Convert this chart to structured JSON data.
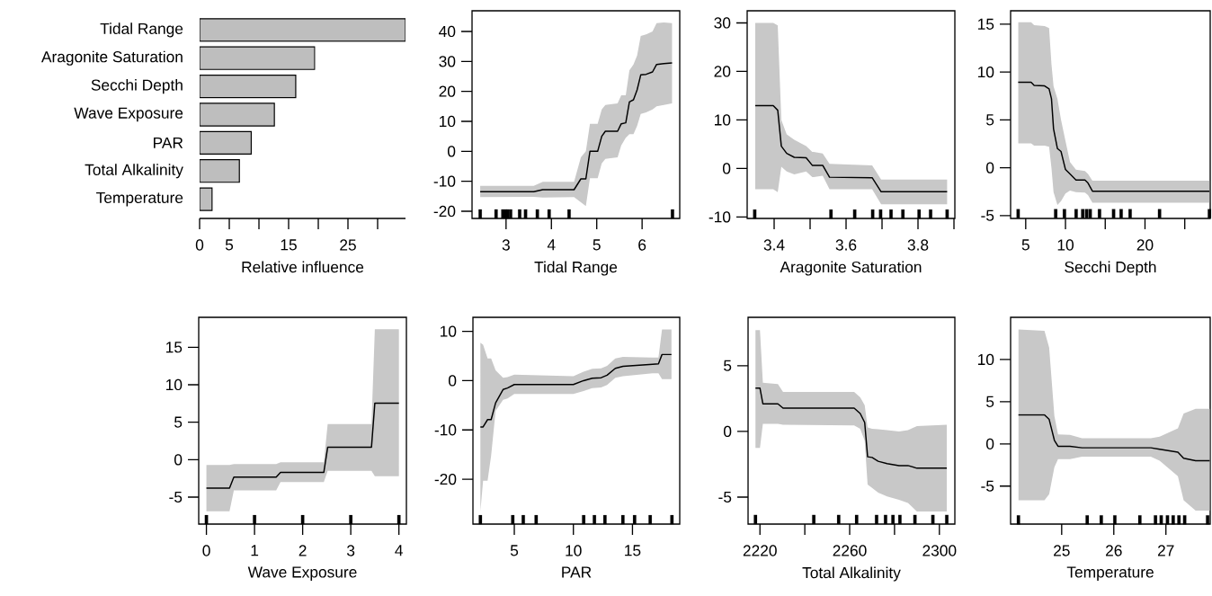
{
  "chart_data": [
    {
      "type": "bar",
      "orientation": "horizontal",
      "categories": [
        "Tidal Range",
        "Aragonite Saturation",
        "Secchi Depth",
        "Wave Exposure",
        "PAR",
        "Total Alkalinity",
        "Temperature"
      ],
      "values": [
        34.7,
        19.4,
        16.2,
        12.6,
        8.7,
        6.7,
        2.1
      ],
      "color": "#bebebe",
      "xlabel": "Relative influence",
      "xlim": [
        0,
        34.7
      ],
      "xticks": [
        0,
        5,
        {
          "value": 10,
          "label": null
        },
        15,
        {
          "value": 20,
          "label": null
        },
        25,
        {
          "value": 30,
          "label": null
        }
      ]
    },
    {
      "type": "line",
      "xlabel": "Tidal Range",
      "xlim": [
        2.25,
        6.83
      ],
      "ylim": [
        -22.4,
        46.9
      ],
      "xticks": [
        3,
        4,
        5,
        6
      ],
      "yticks": [
        -20,
        -10,
        0,
        10,
        20,
        30,
        40
      ],
      "series": [
        {
          "type": "line",
          "color": "#000000",
          "x": [
            2.43,
            3.61,
            3.81,
            4.5,
            4.65,
            4.76,
            4.85,
            5.02,
            5.11,
            5.19,
            5.46,
            5.54,
            5.64,
            5.72,
            5.81,
            5.89,
            5.97,
            6.09,
            6.23,
            6.32,
            6.48,
            6.66
          ],
          "values": [
            -13.5,
            -13.5,
            -12.8,
            -12.8,
            -9.2,
            -9.2,
            0,
            0,
            5,
            6.7,
            6.7,
            9.2,
            9.5,
            16.5,
            17.2,
            20.5,
            25.5,
            25.7,
            26.5,
            29,
            29.3,
            29.5
          ],
          "upper": [
            -11.5,
            -11.5,
            -10.2,
            -10.2,
            -2,
            0,
            9.2,
            9.2,
            14,
            15.5,
            16,
            18.7,
            18.7,
            27,
            29,
            32,
            38.5,
            39,
            40,
            42.8,
            43,
            42.8
          ],
          "lower": [
            -15.3,
            -15.2,
            -15.4,
            -15.3,
            -17,
            -18.3,
            -9,
            -9,
            -4,
            -2.5,
            -2,
            2,
            4.5,
            5.7,
            5.7,
            8.5,
            12.5,
            13,
            14,
            15,
            15.5,
            16
          ]
        },
        {
          "type": "scatter",
          "color": "#000000",
          "x": [
            2.43,
            2.78,
            2.93,
            2.99,
            3.03,
            3.1,
            3.3,
            3.43,
            3.69,
            3.95,
            4.39,
            6.67
          ],
          "values": [
            -20.9,
            -20.9,
            -20.9,
            -20.9,
            -20.9,
            -20.9,
            -20.9,
            -20.9,
            -20.9,
            -20.9,
            -20.9,
            -20.9
          ]
        }
      ]
    },
    {
      "type": "line",
      "xlabel": "Aragonite Saturation",
      "xlim": [
        3.325,
        3.9025
      ],
      "ylim": [
        -10.3,
        32.5
      ],
      "xticks": [
        3.4,
        {
          "value": 3.5,
          "label": null
        },
        3.6,
        {
          "value": 3.7,
          "label": null
        },
        3.8,
        {
          "value": 3.9,
          "label": null
        }
      ],
      "yticks": [
        -10,
        0,
        10,
        20,
        30
      ],
      "series": [
        {
          "type": "line",
          "color": "#000000",
          "x": [
            3.3475,
            3.3975,
            3.41,
            3.42,
            3.435,
            3.456,
            3.489,
            3.506,
            3.51,
            3.535,
            3.554,
            3.6725,
            3.6975,
            3.881
          ],
          "values": [
            12.95,
            12.95,
            12,
            4.6,
            3.1,
            2.3,
            2.2,
            0.65,
            0.65,
            0.65,
            -1.8,
            -1.9,
            -4.8,
            -4.8
          ],
          "upper": [
            30,
            30,
            29.5,
            10,
            7,
            5.9,
            4.6,
            3.4,
            3.4,
            3.1,
            0.95,
            0.65,
            -2.3,
            -2.3
          ],
          "lower": [
            -4.3,
            -4.3,
            -4.9,
            0.35,
            -0.6,
            -1.2,
            -0.6,
            -1.8,
            -1.8,
            -1.5,
            -4.3,
            -4.3,
            -7.4,
            -7.4
          ]
        },
        {
          "type": "scatter",
          "color": "#000000",
          "x": [
            3.346,
            3.558,
            3.624,
            3.674,
            3.696,
            3.725,
            3.758,
            3.803,
            3.835,
            3.881
          ],
          "values": [
            -9.4,
            -9.4,
            -9.4,
            -9.4,
            -9.4,
            -9.4,
            -9.4,
            -9.4,
            -9.4,
            -9.4
          ]
        }
      ]
    },
    {
      "type": "line",
      "xlabel": "Secchi Depth",
      "xlim": [
        3.1,
        28.2
      ],
      "ylim": [
        -5.3,
        16.4
      ],
      "xticks": [
        5,
        10,
        {
          "value": 15,
          "label": null
        },
        20,
        {
          "value": 25,
          "label": null
        }
      ],
      "yticks": [
        -5,
        0,
        5,
        10,
        15
      ],
      "series": [
        {
          "type": "line",
          "color": "#000000",
          "x": [
            4.05,
            5.68,
            6.06,
            7.38,
            7.94,
            8.24,
            8.5,
            8.99,
            9.44,
            10.0,
            10.57,
            11.32,
            12.45,
            12.83,
            13.39,
            28.1
          ],
          "values": [
            8.93,
            8.93,
            8.6,
            8.55,
            8.24,
            7.2,
            4.06,
            2.0,
            1.7,
            -0.19,
            -0.66,
            -1.29,
            -1.29,
            -1.6,
            -2.45,
            -2.45
          ],
          "upper": [
            15.2,
            15.2,
            14.9,
            14.8,
            14.6,
            10.8,
            8.5,
            7.2,
            5.0,
            2.8,
            0.6,
            -0.2,
            -0.35,
            -0.66,
            -1.35,
            -1.35
          ],
          "lower": [
            2.55,
            2.55,
            2.3,
            2.3,
            2.2,
            -0.03,
            -2.55,
            -3.9,
            -3.5,
            -2.7,
            -2.4,
            -2.55,
            -2.6,
            -2.86,
            -3.65,
            -3.65
          ]
        },
        {
          "type": "scatter",
          "color": "#000000",
          "x": [
            4.05,
            8.77,
            9.87,
            11.34,
            12.17,
            12.66,
            13.11,
            14.28,
            16.05,
            17.0,
            18.13,
            21.83,
            28.1
          ],
          "values": [
            -4.8,
            -4.8,
            -4.8,
            -4.8,
            -4.8,
            -4.8,
            -4.8,
            -4.8,
            -4.8,
            -4.8,
            -4.8,
            -4.8,
            -4.8
          ]
        }
      ]
    },
    {
      "type": "line",
      "xlabel": "Wave Exposure",
      "xlim": [
        -0.16,
        4.156
      ],
      "ylim": [
        -8.6,
        19.0
      ],
      "xticks": [
        0,
        1,
        2,
        3,
        4
      ],
      "yticks": [
        -5,
        0,
        5,
        10,
        15
      ],
      "series": [
        {
          "type": "line",
          "color": "#000000",
          "x": [
            0,
            0.48,
            0.57,
            1.45,
            1.54,
            2.44,
            2.52,
            3.43,
            3.5,
            4
          ],
          "values": [
            -3.8,
            -3.8,
            -2.33,
            -2.33,
            -1.7,
            -1.7,
            1.65,
            1.65,
            7.55,
            7.55
          ],
          "upper": [
            -0.7,
            -0.7,
            -0.6,
            -0.6,
            -0.35,
            -0.35,
            4.75,
            4.75,
            17.4,
            17.4
          ],
          "lower": [
            -6.9,
            -6.9,
            -4.1,
            -4.1,
            -3.0,
            -3.0,
            -1.5,
            -1.5,
            -2.2,
            -2.2
          ]
        },
        {
          "type": "scatter",
          "color": "#000000",
          "x": [
            0,
            1,
            2,
            3,
            4
          ],
          "values": [
            -8.0,
            -8.0,
            -8.0,
            -8.0,
            -8.0
          ]
        }
      ]
    },
    {
      "type": "line",
      "xlabel": "PAR",
      "xlim": [
        1.5,
        19.0
      ],
      "ylim": [
        -29.1,
        12.85
      ],
      "xticks": [
        5,
        10,
        15
      ],
      "yticks": [
        -20,
        -10,
        0,
        10
      ],
      "series": [
        {
          "type": "line",
          "color": "#000000",
          "x": [
            2.13,
            2.36,
            2.74,
            3.04,
            3.42,
            4.05,
            4.43,
            5,
            10,
            10.86,
            11.6,
            12.35,
            12.85,
            13.55,
            14.2,
            16.7,
            17.2,
            17.5,
            18.3
          ],
          "values": [
            -9.4,
            -9.4,
            -7.9,
            -7.9,
            -4.5,
            -1.8,
            -1.5,
            -0.79,
            -0.79,
            0.0,
            0.48,
            0.6,
            1.1,
            2.5,
            2.9,
            3.3,
            3.4,
            5.3,
            5.3
          ],
          "upper": [
            7.7,
            7.3,
            4.5,
            4.5,
            2.1,
            0.6,
            0.7,
            1.2,
            0.9,
            1.8,
            2.4,
            2.5,
            3.0,
            4.5,
            4.8,
            4.7,
            4.7,
            10.4,
            10.4
          ],
          "lower": [
            -26.5,
            -20.3,
            -20.3,
            -15.2,
            -6.1,
            -3.9,
            -3.6,
            -2.7,
            -2.7,
            -2.1,
            -1.5,
            -1.4,
            -0.9,
            0.6,
            0.9,
            1.5,
            1.5,
            0.3,
            0.3
          ]
        },
        {
          "type": "scatter",
          "color": "#000000",
          "x": [
            2.13,
            4.87,
            5.76,
            6.85,
            10.87,
            11.78,
            12.67,
            14.19,
            15.18,
            16.5,
            18.34
          ],
          "values": [
            -28.2,
            -28.2,
            -28.2,
            -28.2,
            -28.2,
            -28.2,
            -28.2,
            -28.2,
            -28.2,
            -28.2,
            -28.2
          ]
        }
      ]
    },
    {
      "type": "line",
      "xlabel": "Total Alkalinity",
      "xlim": [
        2214.7,
        2306.9
      ],
      "ylim": [
        -7.05,
        8.68
      ],
      "xticks": [
        2220,
        {
          "value": 2240,
          "label": null
        },
        2260,
        {
          "value": 2280,
          "label": null
        },
        2300
      ],
      "yticks": [
        -5,
        0,
        5
      ],
      "series": [
        {
          "type": "line",
          "color": "#000000",
          "x": [
            2218,
            2220,
            2221.3,
            2228,
            2230.3,
            2262,
            2264.7,
            2266.7,
            2268,
            2270,
            2272.7,
            2276.7,
            2282,
            2286,
            2290,
            2303.3
          ],
          "values": [
            3.3,
            3.3,
            2.1,
            2.1,
            1.77,
            1.77,
            1.36,
            0.68,
            -1.93,
            -1.98,
            -2.27,
            -2.45,
            -2.6,
            -2.6,
            -2.8,
            -2.8
          ],
          "upper": [
            7.7,
            7.7,
            3.7,
            3.6,
            3.0,
            3.0,
            2.6,
            2.0,
            0.3,
            0.2,
            0.16,
            0.1,
            0.0,
            0.1,
            0.4,
            0.5
          ],
          "lower": [
            -1.25,
            -1.25,
            0.57,
            0.57,
            0.5,
            0.45,
            0.2,
            -0.7,
            -4.05,
            -4.3,
            -4.65,
            -4.95,
            -5.2,
            -5.45,
            -6.1,
            -6.1
          ]
        },
        {
          "type": "scatter",
          "color": "#000000",
          "x": [
            2218,
            2244,
            2255.1,
            2263.1,
            2272,
            2276,
            2279.3,
            2282.4,
            2289.1,
            2297.1,
            2303.3
          ],
          "values": [
            -6.7,
            -6.7,
            -6.7,
            -6.7,
            -6.7,
            -6.7,
            -6.7,
            -6.7,
            -6.7,
            -6.7,
            -6.7
          ]
        }
      ]
    },
    {
      "type": "line",
      "xlabel": "Temperature",
      "xlim": [
        24.02,
        27.85
      ],
      "ylim": [
        -9.5,
        15.0
      ],
      "xticks": [
        25,
        26,
        27
      ],
      "yticks": [
        -5,
        0,
        5,
        10
      ],
      "series": [
        {
          "type": "line",
          "color": "#000000",
          "x": [
            24.17,
            24.67,
            24.76,
            24.86,
            24.93,
            25.16,
            25.39,
            26.71,
            26.88,
            27.23,
            27.34,
            27.57,
            27.84
          ],
          "values": [
            3.44,
            3.44,
            2.9,
            0.43,
            -0.28,
            -0.28,
            -0.46,
            -0.46,
            -0.64,
            -0.99,
            -1.7,
            -1.99,
            -1.99
          ],
          "upper": [
            13.55,
            13.4,
            11.4,
            3.3,
            1.13,
            1.06,
            0.67,
            0.67,
            0.85,
            1.84,
            3.6,
            4.15,
            4.15
          ],
          "lower": [
            -6.67,
            -6.67,
            -5.96,
            -2.77,
            -1.8,
            -1.8,
            -1.52,
            -1.52,
            -1.99,
            -3.83,
            -6.67,
            -7.9,
            -7.9
          ]
        },
        {
          "type": "scatter",
          "color": "#000000",
          "x": [
            24.17,
            25.49,
            25.76,
            26.02,
            26.5,
            26.8,
            26.91,
            27.03,
            27.14,
            27.25,
            27.36,
            27.8
          ],
          "values": [
            -9.0,
            -9.0,
            -9.0,
            -9.0,
            -9.0,
            -9.0,
            -9.0,
            -9.0,
            -9.0,
            -9.0,
            -9.0,
            -9.0
          ]
        }
      ]
    }
  ]
}
